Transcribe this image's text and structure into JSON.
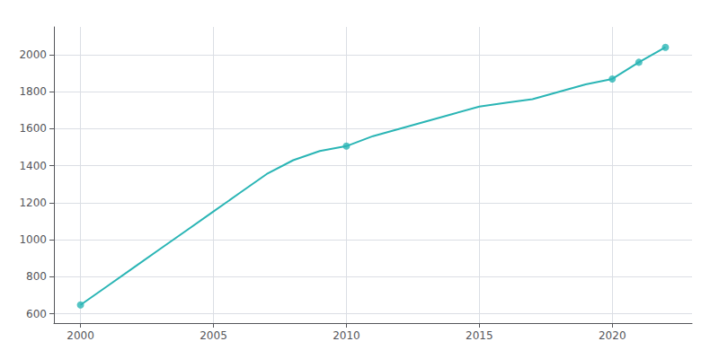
{
  "chart_data": {
    "type": "line",
    "x": [
      2000,
      2001,
      2002,
      2003,
      2004,
      2005,
      2006,
      2007,
      2008,
      2009,
      2010,
      2011,
      2012,
      2013,
      2014,
      2015,
      2016,
      2017,
      2018,
      2019,
      2020,
      2021,
      2022
    ],
    "series": [
      {
        "type": "line",
        "color": "#2ab5b5",
        "values": [
          648,
          749,
          850,
          951,
          1052,
          1153,
          1254,
          1355,
          1430,
          1480,
          1506,
          1560,
          1600,
          1640,
          1680,
          1720,
          1740,
          1760,
          1800,
          1840,
          1869,
          1959,
          2040
        ]
      },
      {
        "type": "scatter",
        "color": "#2ab5b5",
        "marker": "circle",
        "x": [
          2000,
          2010,
          2020,
          2021,
          2022
        ],
        "values": [
          648,
          1506,
          1869,
          1959,
          2040
        ]
      }
    ],
    "xlim": [
      1999,
      2023
    ],
    "ylim": [
      550,
      2150
    ],
    "xticks": [
      2000,
      2005,
      2010,
      2015,
      2020
    ],
    "yticks": [
      600,
      800,
      1000,
      1200,
      1400,
      1600,
      1800,
      2000
    ],
    "grid": true
  }
}
